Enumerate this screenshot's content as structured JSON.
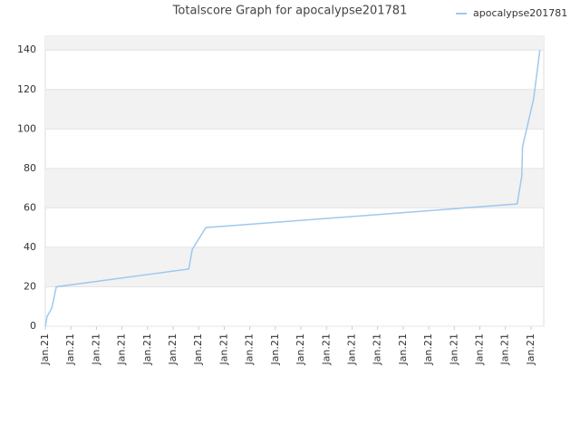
{
  "chart_data": {
    "type": "line",
    "title": "Totalscore Graph for apocalypse201781",
    "x": [
      0,
      0.07,
      0.25,
      0.43,
      5.61,
      5.75,
      6.28,
      18.46,
      18.64,
      18.67,
      19.1,
      19.35
    ],
    "series": [
      {
        "name": "apocalypse201781",
        "color": "#9fc8ee",
        "values": [
          0,
          5,
          9,
          20,
          29,
          39,
          50,
          62,
          76,
          91,
          115,
          140
        ]
      }
    ],
    "xlim": [
      0,
      19.5
    ],
    "xticks": [
      {
        "value": 0,
        "label": "Jan.21"
      },
      {
        "value": 1,
        "label": "Jan.21"
      },
      {
        "value": 2,
        "label": "Jan.21"
      },
      {
        "value": 3,
        "label": "Jan.21"
      },
      {
        "value": 4,
        "label": "Jan.21"
      },
      {
        "value": 5,
        "label": "Jan.21"
      },
      {
        "value": 6,
        "label": "Jan.21"
      },
      {
        "value": 7,
        "label": "Jan.21"
      },
      {
        "value": 8,
        "label": "Jan.21"
      },
      {
        "value": 9,
        "label": "Jan.21"
      },
      {
        "value": 10,
        "label": "Jan.21"
      },
      {
        "value": 11,
        "label": "Jan.21"
      },
      {
        "value": 12,
        "label": "Jan.21"
      },
      {
        "value": 13,
        "label": "Jan.21"
      },
      {
        "value": 14,
        "label": "Jan.21"
      },
      {
        "value": 15,
        "label": "Jan.21"
      },
      {
        "value": 16,
        "label": "Jan.21"
      },
      {
        "value": 17,
        "label": "Jan.21"
      },
      {
        "value": 18,
        "label": "Jan.21"
      },
      {
        "value": 19,
        "label": "Jan.21"
      }
    ],
    "ylim": [
      0,
      147
    ],
    "yticks": [
      0,
      20,
      40,
      60,
      80,
      100,
      120,
      140
    ],
    "grid": true,
    "legend": "top-right"
  }
}
